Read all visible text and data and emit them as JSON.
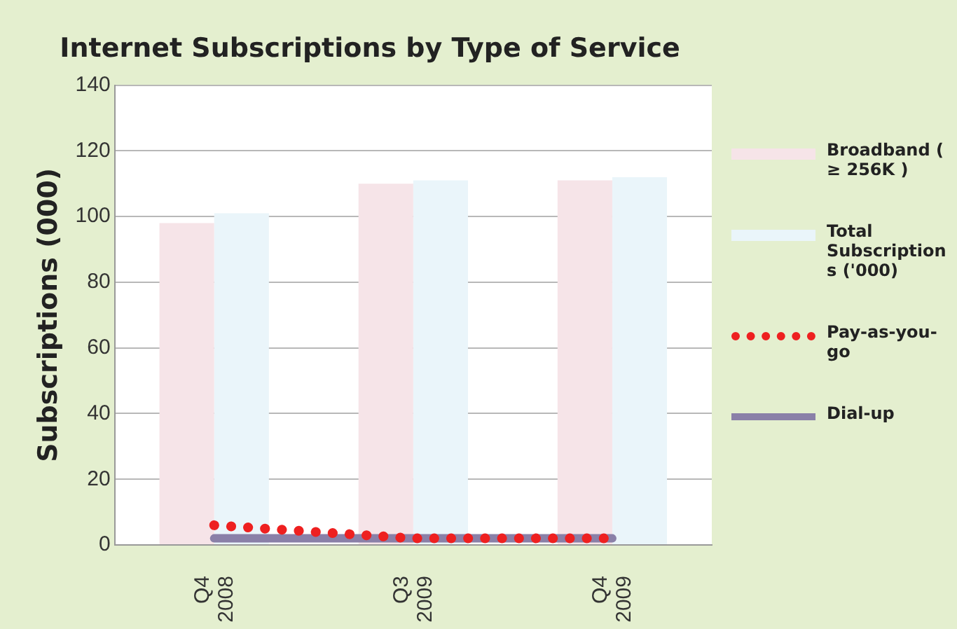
{
  "chart_data": {
    "type": "bar",
    "title": "Internet Subscriptions by Type of Service",
    "ylabel": "Subscriptions (000)",
    "categories": [
      "Q4 2008",
      "Q3 2009",
      "Q4 2009"
    ],
    "series": [
      {
        "name": "Broadband ( ≥ 256K )",
        "color": "#f6e4e8",
        "values": [
          98,
          110,
          111
        ]
      },
      {
        "name": "Total Subscriptions ('000)",
        "color": "#eaf5fa",
        "values": [
          101,
          111,
          112
        ]
      },
      {
        "name": "Pay-as-you-go",
        "type": "line",
        "color": "#ee2020",
        "line_style": "dotted",
        "values": [
          6,
          2,
          2
        ]
      },
      {
        "name": "Dial-up",
        "type": "line",
        "color": "#8a80a8",
        "line_style": "solid",
        "values": [
          2,
          2,
          2
        ]
      }
    ],
    "ylim": [
      0,
      140
    ],
    "yticks": [
      0,
      20,
      40,
      60,
      80,
      100,
      120,
      140
    ],
    "grid": "y",
    "legend": "right"
  }
}
